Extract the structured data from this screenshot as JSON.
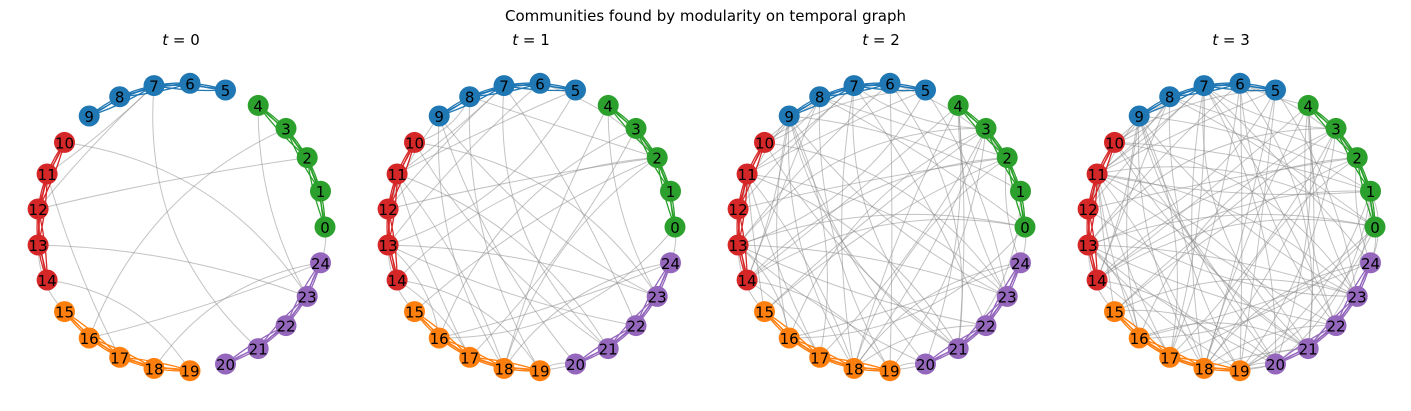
{
  "figure": {
    "title": "Communities found by modularity on temporal graph"
  },
  "chart_data": {
    "type": "network",
    "panels": [
      {
        "title_var": "t",
        "title_eq": " = ",
        "title_val": "0",
        "t": 0,
        "inter_edge_count": 14
      },
      {
        "title_var": "t",
        "title_eq": " = ",
        "title_val": "1",
        "t": 1,
        "inter_edge_count": 40
      },
      {
        "title_var": "t",
        "title_eq": " = ",
        "title_val": "2",
        "t": 2,
        "inter_edge_count": 70
      },
      {
        "title_var": "t",
        "title_eq": " = ",
        "title_val": "3",
        "t": 3,
        "inter_edge_count": 100
      }
    ],
    "nodes": [
      "0",
      "1",
      "2",
      "3",
      "4",
      "5",
      "6",
      "7",
      "8",
      "9",
      "10",
      "11",
      "12",
      "13",
      "14",
      "15",
      "16",
      "17",
      "18",
      "19",
      "20",
      "21",
      "22",
      "23",
      "24"
    ],
    "communities": [
      {
        "nodes": [
          0,
          1,
          2,
          3,
          4
        ],
        "color": "#2ca02c"
      },
      {
        "nodes": [
          5,
          6,
          7,
          8,
          9
        ],
        "color": "#1f77b4"
      },
      {
        "nodes": [
          10,
          11,
          12,
          13,
          14
        ],
        "color": "#d62728"
      },
      {
        "nodes": [
          15,
          16,
          17,
          18,
          19
        ],
        "color": "#ff7f0e"
      },
      {
        "nodes": [
          20,
          21,
          22,
          23,
          24
        ],
        "color": "#9467bd"
      }
    ],
    "inter_edge_color": "#888888"
  }
}
